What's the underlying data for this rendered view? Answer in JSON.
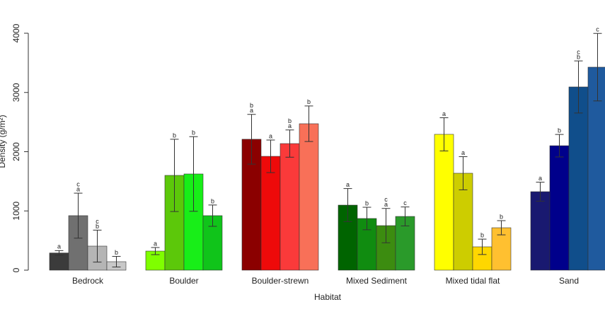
{
  "chart_data": {
    "type": "bar",
    "x_label": "Habitat",
    "y_label": "Density (g/m²)",
    "categories": [
      "Bedrock",
      "Boulder",
      "Boulder-strewn",
      "Mixed Sediment",
      "Mixed tidal flat",
      "Sand"
    ],
    "ylim": [
      0,
      4000
    ],
    "yticks": [
      0,
      1000,
      2000,
      3000,
      4000
    ],
    "series": [
      {
        "values": [
          290,
          322,
          2210,
          1098,
          2293,
          1325
        ],
        "errors": [
          40,
          60,
          420,
          280,
          280,
          160
        ],
        "colors": [
          "#3b3b3b",
          "#7fff00",
          "#8b0000",
          "#006400",
          "#ffff00",
          "#191970"
        ],
        "letters": [
          [
            "a"
          ],
          [
            "a"
          ],
          [
            "b",
            "a"
          ],
          [
            "a"
          ],
          [
            "a"
          ],
          [
            "a"
          ]
        ]
      },
      {
        "values": [
          920,
          1600,
          1922,
          872,
          1636,
          2101
        ],
        "errors": [
          380,
          610,
          275,
          190,
          280,
          190
        ],
        "colors": [
          "#707070",
          "#5cc80a",
          "#ee0a0a",
          "#108c10",
          "#cdcd00",
          "#00008b"
        ],
        "letters": [
          [
            "c",
            "a"
          ],
          [
            "b"
          ],
          [
            "a"
          ],
          [
            "b"
          ],
          [
            "a"
          ],
          [
            "b"
          ]
        ]
      },
      {
        "values": [
          406,
          1624,
          2137,
          752,
          394,
          3093
        ],
        "errors": [
          270,
          630,
          230,
          290,
          130,
          440
        ],
        "colors": [
          "#b5b5b5",
          "#18ee18",
          "#fa3a3a",
          "#3c8c10",
          "#ffd700",
          "#104e8b"
        ],
        "letters": [
          [
            "c",
            "b"
          ],
          [
            "b"
          ],
          [
            "b",
            "a"
          ],
          [
            "c",
            "a"
          ],
          [
            "b"
          ],
          [
            "c",
            "b"
          ]
        ]
      },
      {
        "values": [
          143,
          920,
          2472,
          907,
          716,
          3427
        ],
        "errors": [
          90,
          180,
          300,
          160,
          120,
          570
        ],
        "colors": [
          "#c8c8c8",
          "#10c41a",
          "#f87058",
          "#2a9a2a",
          "#ffc030",
          "#1f5a9e"
        ],
        "letters": [
          [
            "b"
          ],
          [
            "b"
          ],
          [
            "b"
          ],
          [
            "c"
          ],
          [
            "b"
          ],
          [
            "c"
          ]
        ]
      }
    ]
  }
}
